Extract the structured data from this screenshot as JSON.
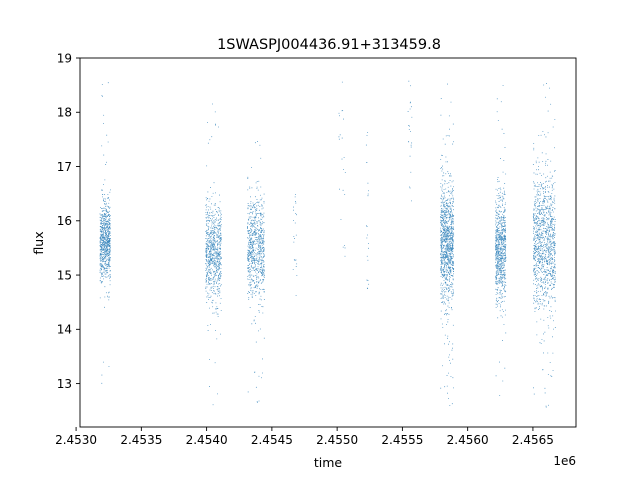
{
  "chart_data": {
    "type": "scatter",
    "title": "1SWASPJ004436.91+313459.8",
    "xlabel": "time",
    "ylabel": "flux",
    "x_offset_label": "1e6",
    "xlim": [
      2.45303,
      2.45683
    ],
    "ylim": [
      12.2,
      19.0
    ],
    "x_ticks": [
      2.453,
      2.4535,
      2.454,
      2.4545,
      2.455,
      2.4555,
      2.456,
      2.4565
    ],
    "x_tick_labels": [
      "2.4530",
      "2.4535",
      "2.4540",
      "2.4545",
      "2.4550",
      "2.4555",
      "2.4560",
      "2.4565"
    ],
    "y_ticks": [
      13,
      14,
      15,
      16,
      17,
      18,
      19
    ],
    "y_tick_labels": [
      "13",
      "14",
      "15",
      "16",
      "17",
      "18",
      "19"
    ],
    "grid": false,
    "legend": "none",
    "marker_color": "#1f77b4",
    "observing_seasons": [
      {
        "t_start": 2.45318,
        "t_end": 2.45326,
        "flux_center": 15.6,
        "flux_spread": 0.35,
        "flux_min": 12.8,
        "flux_max": 18.7,
        "density": "high"
      },
      {
        "t_start": 2.45399,
        "t_end": 2.45411,
        "flux_center": 15.4,
        "flux_spread": 0.45,
        "flux_min": 12.6,
        "flux_max": 18.3,
        "density": "high"
      },
      {
        "t_start": 2.45431,
        "t_end": 2.45444,
        "flux_center": 15.5,
        "flux_spread": 0.45,
        "flux_min": 12.6,
        "flux_max": 17.6,
        "density": "high"
      },
      {
        "t_start": 2.45466,
        "t_end": 2.45469,
        "flux_center": 15.6,
        "flux_spread": 0.5,
        "flux_min": 14.6,
        "flux_max": 16.5,
        "density": "sparse"
      },
      {
        "t_start": 2.45501,
        "t_end": 2.45506,
        "flux_center": 17.5,
        "flux_spread": 0.9,
        "flux_min": 15.3,
        "flux_max": 18.6,
        "density": "sparse"
      },
      {
        "t_start": 2.45522,
        "t_end": 2.45524,
        "flux_center": 16.8,
        "flux_spread": 0.6,
        "flux_min": 14.7,
        "flux_max": 17.7,
        "density": "sparse"
      },
      {
        "t_start": 2.45554,
        "t_end": 2.45557,
        "flux_center": 17.6,
        "flux_spread": 0.7,
        "flux_min": 16.3,
        "flux_max": 18.7,
        "density": "sparse"
      },
      {
        "t_start": 2.45579,
        "t_end": 2.45589,
        "flux_center": 15.6,
        "flux_spread": 0.55,
        "flux_min": 12.5,
        "flux_max": 18.6,
        "density": "very high"
      },
      {
        "t_start": 2.45621,
        "t_end": 2.45629,
        "flux_center": 15.5,
        "flux_spread": 0.5,
        "flux_min": 12.6,
        "flux_max": 18.6,
        "density": "high"
      },
      {
        "t_start": 2.4565,
        "t_end": 2.45667,
        "flux_center": 15.6,
        "flux_spread": 0.6,
        "flux_min": 12.5,
        "flux_max": 18.7,
        "density": "very high"
      }
    ]
  }
}
